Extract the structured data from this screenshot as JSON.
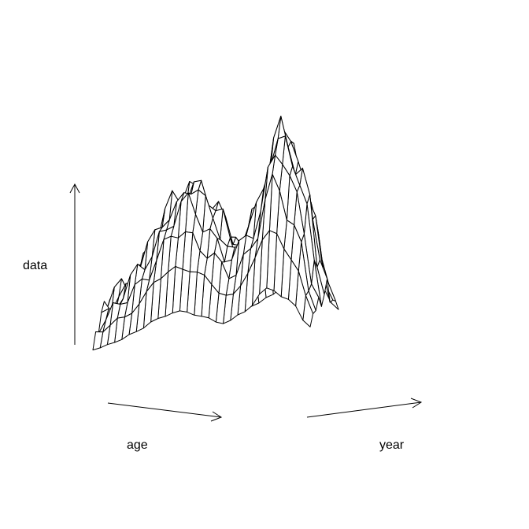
{
  "chart_data": {
    "type": "surface",
    "title": "",
    "xlabel": "age",
    "ylabel": "year",
    "zlabel": "data",
    "grid": false,
    "legend": "none",
    "colors": {
      "line": "#000000",
      "fill": "#ffffff",
      "background": "#ffffff"
    },
    "profile_peaks": [
      {
        "index": 0,
        "height": 0.3
      },
      {
        "index": 3,
        "height": 0.42
      },
      {
        "index": 6,
        "height": 0.62
      },
      {
        "index": 9,
        "height": 0.88
      },
      {
        "index": 12,
        "height": 1.0
      },
      {
        "index": 15,
        "height": 0.8
      },
      {
        "index": 18,
        "height": 0.55
      },
      {
        "index": 21,
        "height": 0.78
      },
      {
        "index": 24,
        "height": 1.3
      },
      {
        "index": 27,
        "height": 0.95
      },
      {
        "index": 30,
        "height": 0.2
      }
    ]
  }
}
